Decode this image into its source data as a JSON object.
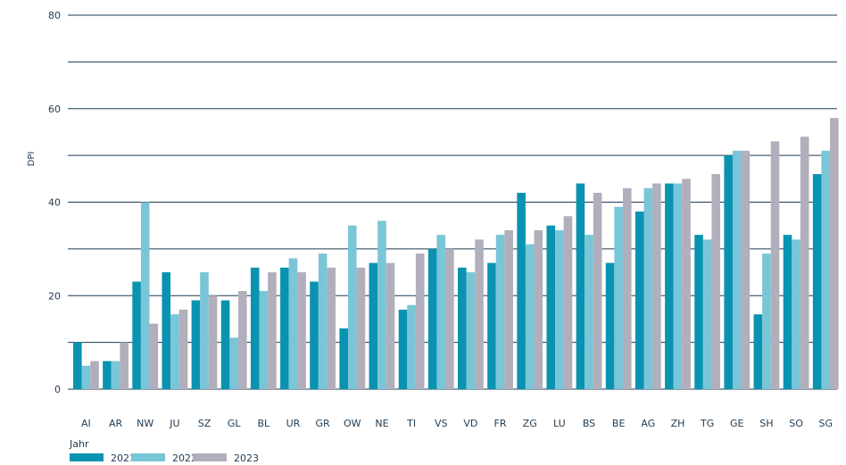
{
  "chart_data": {
    "type": "bar",
    "title": "",
    "xlabel": "",
    "ylabel": "DPI",
    "ylim": [
      0,
      80
    ],
    "yticks": [
      0,
      20,
      40,
      60,
      80
    ],
    "grid": true,
    "legend_title": "Jahr",
    "legend_position": "bottom-left",
    "categories": [
      "AI",
      "AR",
      "NW",
      "JU",
      "SZ",
      "GL",
      "BL",
      "UR",
      "GR",
      "OW",
      "NE",
      "TI",
      "VS",
      "VD",
      "FR",
      "ZG",
      "LU",
      "BS",
      "BE",
      "AG",
      "ZH",
      "TG",
      "GE",
      "SH",
      "SO",
      "SG"
    ],
    "series": [
      {
        "name": "2021",
        "color": "#0a93b1",
        "values": [
          10,
          6,
          23,
          25,
          19,
          19,
          26,
          26,
          23,
          13,
          27,
          17,
          30,
          26,
          27,
          42,
          35,
          44,
          27,
          38,
          44,
          33,
          50,
          16,
          33,
          46
        ]
      },
      {
        "name": "2022",
        "color": "#79c6d8",
        "values": [
          5,
          6,
          40,
          16,
          25,
          11,
          21,
          28,
          29,
          35,
          36,
          18,
          33,
          25,
          33,
          31,
          34,
          33,
          39,
          43,
          44,
          32,
          51,
          29,
          32,
          51
        ]
      },
      {
        "name": "2023",
        "color": "#b2afbc",
        "values": [
          6,
          10,
          14,
          17,
          20,
          21,
          25,
          25,
          26,
          26,
          27,
          29,
          30,
          32,
          34,
          34,
          37,
          42,
          43,
          44,
          45,
          46,
          51,
          53,
          54,
          58
        ]
      }
    ]
  }
}
